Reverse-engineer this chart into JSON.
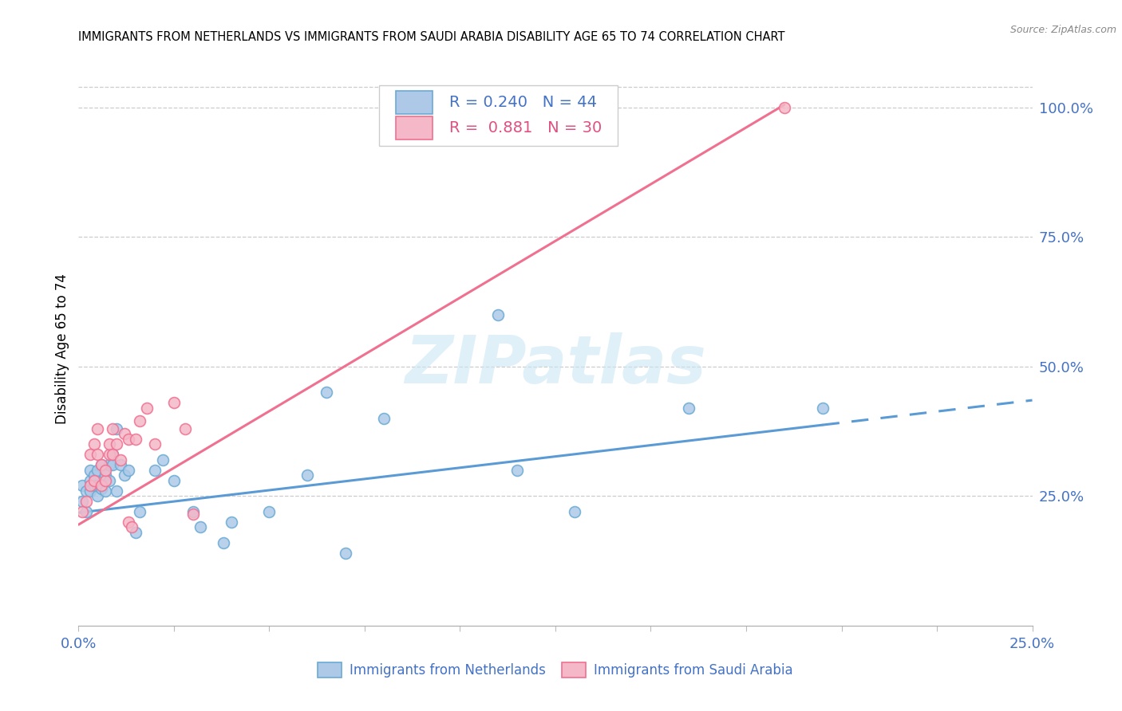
{
  "title": "IMMIGRANTS FROM NETHERLANDS VS IMMIGRANTS FROM SAUDI ARABIA DISABILITY AGE 65 TO 74 CORRELATION CHART",
  "source": "Source: ZipAtlas.com",
  "ylabel": "Disability Age 65 to 74",
  "xlim": [
    0.0,
    0.25
  ],
  "ylim": [
    0.0,
    1.07
  ],
  "xticks": [
    0.0,
    0.025,
    0.05,
    0.075,
    0.1,
    0.125,
    0.15,
    0.175,
    0.2,
    0.225,
    0.25
  ],
  "yticks_right": [
    0.25,
    0.5,
    0.75,
    1.0
  ],
  "ytick_right_labels": [
    "25.0%",
    "50.0%",
    "75.0%",
    "100.0%"
  ],
  "watermark_text": "ZIPatlas",
  "R_netherlands": "0.240",
  "N_netherlands": "44",
  "R_saudi": "0.881",
  "N_saudi": "30",
  "color_nl_fill": "#aec9e8",
  "color_nl_edge": "#6aaad4",
  "color_sa_fill": "#f4b8c8",
  "color_sa_edge": "#f07090",
  "color_nl_line": "#5b9bd5",
  "color_sa_line": "#f07090",
  "color_text_blue": "#4472c4",
  "color_text_pink": "#e05080",
  "netherlands_x": [
    0.001,
    0.001,
    0.002,
    0.002,
    0.003,
    0.003,
    0.003,
    0.004,
    0.004,
    0.005,
    0.005,
    0.005,
    0.006,
    0.006,
    0.007,
    0.007,
    0.008,
    0.008,
    0.009,
    0.009,
    0.01,
    0.01,
    0.011,
    0.012,
    0.013,
    0.015,
    0.016,
    0.02,
    0.022,
    0.025,
    0.03,
    0.032,
    0.038,
    0.04,
    0.05,
    0.06,
    0.065,
    0.07,
    0.08,
    0.11,
    0.115,
    0.13,
    0.16,
    0.195
  ],
  "netherlands_y": [
    0.24,
    0.27,
    0.22,
    0.26,
    0.26,
    0.28,
    0.3,
    0.27,
    0.29,
    0.25,
    0.27,
    0.3,
    0.265,
    0.31,
    0.26,
    0.29,
    0.31,
    0.28,
    0.31,
    0.33,
    0.38,
    0.26,
    0.31,
    0.29,
    0.3,
    0.18,
    0.22,
    0.3,
    0.32,
    0.28,
    0.22,
    0.19,
    0.16,
    0.2,
    0.22,
    0.29,
    0.45,
    0.14,
    0.4,
    0.6,
    0.3,
    0.22,
    0.42,
    0.42
  ],
  "saudi_x": [
    0.001,
    0.002,
    0.003,
    0.003,
    0.004,
    0.004,
    0.005,
    0.005,
    0.006,
    0.006,
    0.007,
    0.007,
    0.008,
    0.008,
    0.009,
    0.009,
    0.01,
    0.011,
    0.012,
    0.013,
    0.013,
    0.014,
    0.015,
    0.016,
    0.018,
    0.02,
    0.025,
    0.028,
    0.03,
    0.185
  ],
  "saudi_y": [
    0.22,
    0.24,
    0.27,
    0.33,
    0.28,
    0.35,
    0.33,
    0.38,
    0.27,
    0.31,
    0.28,
    0.3,
    0.33,
    0.35,
    0.33,
    0.38,
    0.35,
    0.32,
    0.37,
    0.2,
    0.36,
    0.19,
    0.36,
    0.395,
    0.42,
    0.35,
    0.43,
    0.38,
    0.215,
    1.0
  ],
  "nl_trend_x0": 0.0,
  "nl_trend_y0": 0.218,
  "nl_trend_x1": 0.25,
  "nl_trend_y1": 0.435,
  "sa_trend_x0": 0.0,
  "sa_trend_y0": 0.195,
  "sa_trend_x1": 0.185,
  "sa_trend_y1": 1.005,
  "figsize": [
    14.06,
    8.92
  ],
  "dpi": 100
}
